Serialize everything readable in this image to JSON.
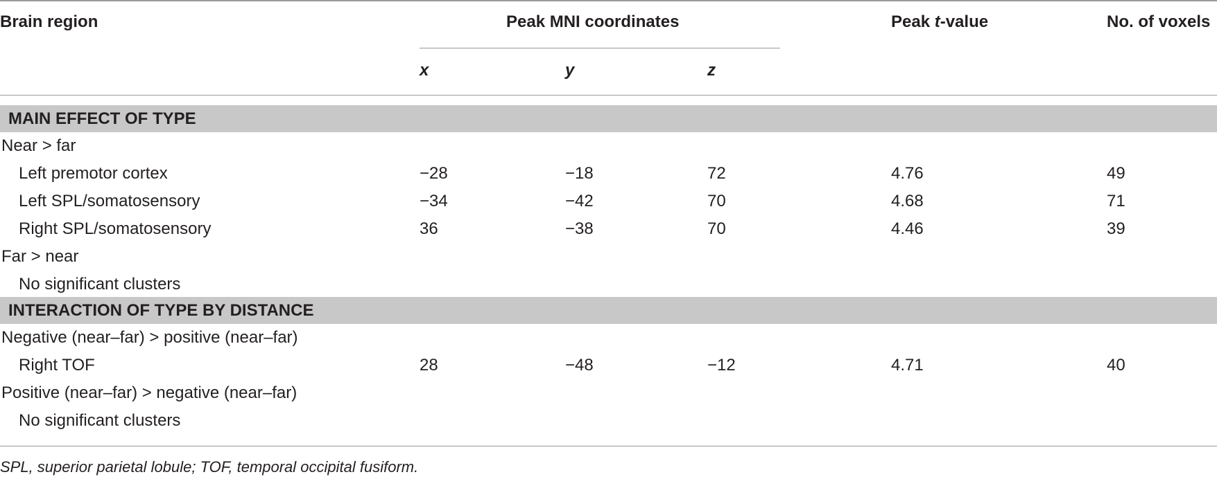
{
  "header": {
    "brain_region": "Brain region",
    "peak_mni": "Peak MNI coordinates",
    "peak_t_prefix": "Peak ",
    "peak_t_italic": "t",
    "peak_t_suffix": "-value",
    "voxels": "No. of voxels",
    "x": "x",
    "y": "y",
    "z": "z"
  },
  "sections": [
    {
      "title": "MAIN EFFECT OF TYPE",
      "rows": [
        {
          "region": "Near > far",
          "indent": false,
          "x": "",
          "y": "",
          "z": "",
          "t": "",
          "voxels": ""
        },
        {
          "region": "Left premotor cortex",
          "indent": true,
          "x": "−28",
          "y": "−18",
          "z": "72",
          "t": "4.76",
          "voxels": "49"
        },
        {
          "region": "Left SPL/somatosensory",
          "indent": true,
          "x": "−34",
          "y": "−42",
          "z": "70",
          "t": "4.68",
          "voxels": "71"
        },
        {
          "region": "Right SPL/somatosensory",
          "indent": true,
          "x": "36",
          "y": "−38",
          "z": "70",
          "t": "4.46",
          "voxels": "39"
        },
        {
          "region": "Far > near",
          "indent": false,
          "x": "",
          "y": "",
          "z": "",
          "t": "",
          "voxels": ""
        },
        {
          "region": "No significant clusters",
          "indent": true,
          "x": "",
          "y": "",
          "z": "",
          "t": "",
          "voxels": ""
        }
      ]
    },
    {
      "title": "INTERACTION OF TYPE BY DISTANCE",
      "rows": [
        {
          "region": "Negative (near–far) > positive (near–far)",
          "indent": false,
          "x": "",
          "y": "",
          "z": "",
          "t": "",
          "voxels": ""
        },
        {
          "region": "Right TOF",
          "indent": true,
          "x": "28",
          "y": "−48",
          "z": "−12",
          "t": "4.71",
          "voxels": "40"
        },
        {
          "region": "Positive (near–far) > negative (near–far)",
          "indent": false,
          "x": "",
          "y": "",
          "z": "",
          "t": "",
          "voxels": ""
        },
        {
          "region": "No significant clusters",
          "indent": true,
          "x": "",
          "y": "",
          "z": "",
          "t": "",
          "voxels": ""
        }
      ]
    }
  ],
  "footnote": "SPL, superior parietal lobule; TOF, temporal occipital fusiform."
}
